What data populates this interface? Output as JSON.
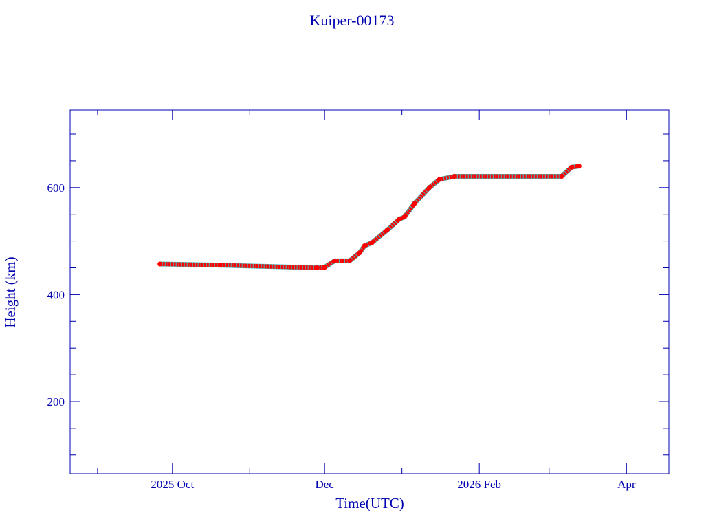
{
  "chart_data": {
    "type": "scatter",
    "title": "Kuiper-00173",
    "xlabel": "Time(UTC)",
    "ylabel": "Height (km)",
    "xlim": [
      "2025-08-21",
      "2026-04-18"
    ],
    "ylim": [
      65,
      745
    ],
    "x_ticks": [
      {
        "date": "2025-10-01",
        "label": "2025 Oct"
      },
      {
        "date": "2025-12-01",
        "label": "Dec"
      },
      {
        "date": "2026-02-01",
        "label": "2026 Feb"
      },
      {
        "date": "2026-04-01",
        "label": "Apr"
      }
    ],
    "x_minor_ticks": [
      "2025-09-01",
      "2025-11-01",
      "2026-01-01",
      "2026-03-01"
    ],
    "y_ticks": [
      {
        "value": 200,
        "label": "200"
      },
      {
        "value": 400,
        "label": "400"
      },
      {
        "value": 600,
        "label": "600"
      }
    ],
    "y_minor_step": 50,
    "grid": false,
    "colors": {
      "axis": "#0000b0",
      "points": "#ff0000",
      "under": "#40c0c0"
    },
    "series": [
      {
        "name": "Height",
        "points": [
          {
            "x": "2025-09-26",
            "y": 457
          },
          {
            "x": "2025-10-20",
            "y": 455
          },
          {
            "x": "2025-11-28",
            "y": 450
          },
          {
            "x": "2025-12-01",
            "y": 451
          },
          {
            "x": "2025-12-05",
            "y": 463
          },
          {
            "x": "2025-12-11",
            "y": 463
          },
          {
            "x": "2025-12-15",
            "y": 478
          },
          {
            "x": "2025-12-17",
            "y": 491
          },
          {
            "x": "2025-12-20",
            "y": 497
          },
          {
            "x": "2025-12-26",
            "y": 520
          },
          {
            "x": "2025-12-31",
            "y": 541
          },
          {
            "x": "2026-01-02",
            "y": 545
          },
          {
            "x": "2026-01-06",
            "y": 570
          },
          {
            "x": "2026-01-12",
            "y": 600
          },
          {
            "x": "2026-01-16",
            "y": 615
          },
          {
            "x": "2026-01-22",
            "y": 621
          },
          {
            "x": "2026-03-06",
            "y": 621
          },
          {
            "x": "2026-03-10",
            "y": 638
          },
          {
            "x": "2026-03-13",
            "y": 640
          }
        ]
      }
    ]
  }
}
